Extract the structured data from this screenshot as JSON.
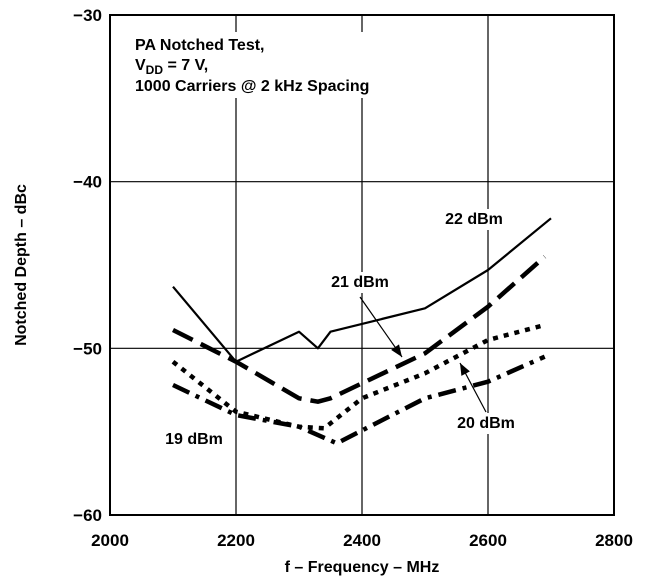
{
  "chart_data": {
    "type": "line",
    "xlabel": "f – Frequency – MHz",
    "ylabel": "Notched Depth – dBc",
    "xlim": [
      2000,
      2800
    ],
    "ylim": [
      -60,
      -30
    ],
    "xticks": [
      {
        "value": 2000,
        "label": "2000"
      },
      {
        "value": 2200,
        "label": "2200"
      },
      {
        "value": 2400,
        "label": "2400"
      },
      {
        "value": 2600,
        "label": "2600"
      },
      {
        "value": 2800,
        "label": "2800"
      }
    ],
    "yticks": [
      {
        "value": -30,
        "label": "−30"
      },
      {
        "value": -40,
        "label": "−40"
      },
      {
        "value": -50,
        "label": "−50"
      },
      {
        "value": -60,
        "label": "−60"
      }
    ],
    "grid": true,
    "annotation": {
      "line1": "PA Notched Test,",
      "line2_prefix": "V",
      "line2_sub": "DD",
      "line2_suffix": " = 7 V,",
      "line3": "1000 Carriers @ 2 kHz Spacing"
    },
    "series": [
      {
        "name": "22 dBm",
        "style": "solid",
        "x": [
          2100,
          2200,
          2300,
          2330,
          2350,
          2500,
          2600,
          2700
        ],
        "y": [
          -46.3,
          -50.8,
          -49.0,
          -50.0,
          -49.0,
          -47.6,
          -45.3,
          -42.2
        ]
      },
      {
        "name": "21 dBm",
        "style": "dash",
        "x": [
          2100,
          2200,
          2300,
          2330,
          2350,
          2500,
          2600,
          2690
        ],
        "y": [
          -48.9,
          -50.8,
          -53.0,
          -53.2,
          -53.0,
          -50.3,
          -47.5,
          -44.5
        ]
      },
      {
        "name": "20 dBm",
        "style": "dashdot",
        "x": [
          2100,
          2200,
          2300,
          2360,
          2500,
          2600,
          2690
        ],
        "y": [
          -52.2,
          -54.0,
          -54.7,
          -55.7,
          -53.0,
          -52.0,
          -50.5
        ]
      },
      {
        "name": "19 dBm",
        "style": "dot",
        "x": [
          2100,
          2200,
          2300,
          2340,
          2400,
          2500,
          2600,
          2690
        ],
        "y": [
          -50.8,
          -53.8,
          -54.7,
          -54.8,
          -53.0,
          -51.5,
          -49.5,
          -48.6
        ]
      }
    ]
  }
}
